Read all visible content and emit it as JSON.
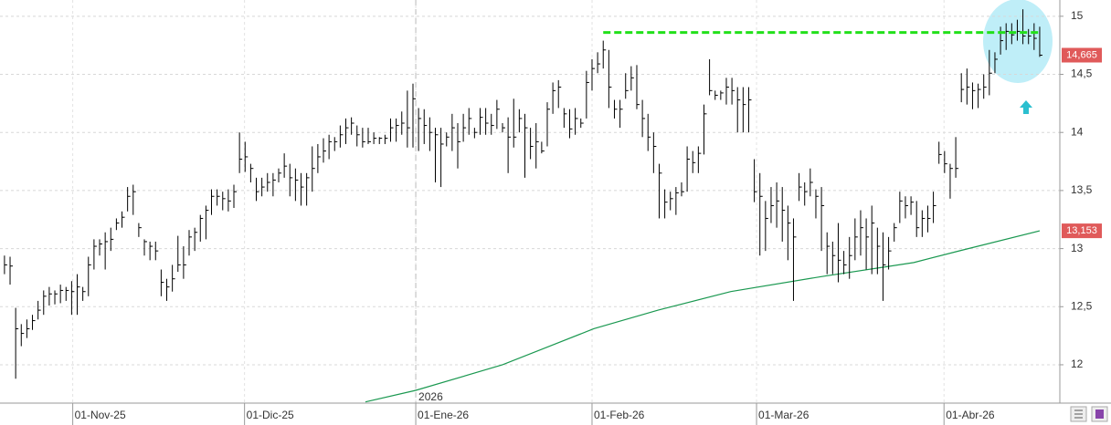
{
  "chart_data": {
    "type": "ohlc",
    "color": "#000000",
    "x": [
      0,
      1,
      2,
      3,
      4,
      5,
      6,
      7,
      8,
      9,
      10,
      11,
      12,
      13,
      14,
      15,
      16,
      17,
      18,
      19,
      20,
      21,
      22,
      23,
      24,
      25,
      26,
      27,
      28,
      29,
      30,
      31,
      32,
      33,
      34,
      35,
      36,
      37,
      38,
      39,
      40,
      41,
      42,
      43,
      44,
      45,
      46,
      47,
      48,
      49,
      50,
      51,
      52,
      53,
      54,
      55,
      56,
      57,
      58,
      59,
      60,
      61,
      62,
      63,
      64,
      65,
      66,
      67,
      68,
      69,
      70,
      71,
      72,
      73,
      74,
      75,
      76,
      77,
      78,
      79,
      80,
      81,
      82,
      83,
      84,
      85,
      86,
      87,
      88,
      89,
      90,
      91,
      92,
      93,
      94,
      95,
      96,
      97,
      98,
      99,
      100,
      101,
      102,
      103,
      104,
      105,
      106,
      107,
      108,
      109,
      110,
      111,
      112,
      113,
      114,
      115,
      116,
      117,
      118,
      119,
      120,
      121,
      122,
      123,
      124,
      125,
      126,
      127,
      128,
      129,
      130,
      131,
      132,
      133,
      134,
      135,
      136,
      137,
      138,
      139,
      140,
      141,
      142,
      143,
      144,
      145,
      146,
      147,
      148,
      149,
      150,
      151,
      152,
      153,
      154,
      155,
      156,
      157,
      158,
      159,
      160,
      161,
      162,
      163,
      164,
      165,
      166,
      167,
      168,
      169,
      170,
      171,
      172,
      173,
      174,
      175,
      176,
      177,
      178,
      179,
      180,
      181,
      182,
      183,
      184,
      185
    ],
    "high": [
      12.94,
      12.93,
      12.49,
      12.35,
      12.39,
      12.43,
      12.55,
      12.64,
      12.67,
      12.64,
      12.69,
      12.67,
      12.72,
      12.78,
      12.67,
      12.93,
      13.08,
      13.08,
      13.14,
      13.18,
      13.26,
      13.32,
      13.53,
      13.55,
      13.22,
      13.08,
      13.06,
      13.06,
      12.82,
      12.74,
      12.86,
      13.11,
      13.02,
      13.16,
      13.18,
      13.29,
      13.37,
      13.51,
      13.51,
      13.49,
      13.51,
      13.55,
      14.0,
      13.92,
      13.73,
      13.61,
      13.61,
      13.65,
      13.65,
      13.69,
      13.82,
      13.73,
      13.69,
      13.65,
      13.65,
      13.88,
      13.9,
      13.95,
      13.98,
      13.96,
      14.06,
      14.12,
      14.13,
      14.06,
      14.04,
      14.04,
      14.0,
      13.96,
      13.98,
      14.12,
      14.12,
      14.18,
      14.36,
      14.42,
      14.21,
      14.2,
      14.13,
      14.04,
      14.04,
      14.0,
      14.16,
      14.08,
      14.16,
      14.21,
      14.04,
      14.21,
      14.21,
      14.16,
      14.28,
      14.08,
      14.13,
      14.29,
      14.2,
      14.16,
      14.04,
      14.08,
      13.92,
      14.26,
      14.43,
      14.45,
      14.21,
      14.2,
      14.21,
      14.12,
      14.53,
      14.63,
      14.69,
      14.79,
      14.71,
      14.28,
      14.28,
      14.51,
      14.57,
      14.58,
      14.28,
      14.16,
      14.0,
      13.73,
      13.51,
      13.49,
      13.53,
      13.57,
      13.88,
      13.84,
      13.88,
      14.24,
      14.63,
      14.36,
      14.36,
      14.47,
      14.47,
      14.39,
      14.39,
      14.39,
      13.77,
      13.65,
      13.41,
      13.53,
      13.57,
      13.53,
      13.37,
      13.26,
      13.65,
      13.57,
      13.69,
      13.51,
      13.53,
      13.14,
      13.06,
      13.22,
      12.98,
      13.1,
      13.26,
      13.33,
      13.26,
      13.37,
      13.18,
      13.14,
      13.1,
      13.22,
      13.49,
      13.45,
      13.45,
      13.41,
      13.33,
      13.37,
      13.49,
      13.92,
      13.84,
      13.73,
      13.96,
      14.51,
      14.55,
      14.43,
      14.42,
      14.5,
      14.71,
      14.69,
      14.91,
      14.94,
      14.94,
      14.97,
      15.06,
      14.89,
      14.94,
      14.91
    ],
    "low": [
      12.78,
      12.69,
      11.88,
      12.16,
      12.23,
      12.3,
      12.39,
      12.43,
      12.51,
      12.52,
      12.53,
      12.55,
      12.43,
      12.43,
      12.55,
      12.59,
      12.82,
      12.94,
      12.82,
      12.98,
      13.16,
      13.18,
      13.32,
      13.29,
      13.1,
      12.94,
      12.9,
      12.9,
      12.59,
      12.55,
      12.63,
      12.8,
      12.74,
      12.94,
      12.98,
      13.06,
      13.08,
      13.29,
      13.37,
      13.33,
      13.32,
      13.35,
      13.65,
      13.66,
      13.57,
      13.41,
      13.45,
      13.49,
      13.45,
      13.57,
      13.61,
      13.45,
      13.41,
      13.37,
      13.37,
      13.49,
      13.65,
      13.74,
      13.77,
      13.84,
      13.87,
      13.9,
      13.98,
      13.88,
      13.87,
      13.9,
      13.9,
      13.9,
      13.9,
      13.92,
      13.92,
      13.98,
      13.87,
      13.87,
      13.84,
      13.9,
      13.84,
      13.57,
      13.53,
      13.88,
      13.84,
      13.69,
      13.92,
      13.98,
      13.95,
      13.98,
      13.98,
      13.98,
      14.03,
      14.0,
      13.65,
      13.87,
      14.0,
      13.61,
      13.77,
      13.69,
      13.82,
      13.88,
      14.16,
      14.21,
      14.04,
      13.95,
      13.98,
      14.04,
      14.12,
      14.36,
      14.51,
      14.55,
      14.21,
      14.12,
      14.04,
      14.29,
      14.36,
      14.2,
      13.96,
      13.84,
      13.65,
      13.26,
      13.26,
      13.33,
      13.29,
      13.45,
      13.49,
      13.65,
      13.65,
      13.81,
      14.32,
      14.28,
      14.28,
      14.24,
      14.24,
      14.0,
      14.0,
      14.0,
      13.4,
      12.94,
      12.98,
      13.22,
      13.18,
      13.06,
      12.9,
      12.55,
      13.41,
      13.37,
      13.45,
      13.26,
      12.98,
      12.78,
      12.78,
      12.71,
      12.78,
      12.74,
      12.9,
      12.94,
      12.82,
      12.78,
      12.78,
      12.55,
      12.82,
      13.06,
      13.22,
      13.26,
      13.29,
      13.1,
      13.1,
      13.14,
      13.22,
      13.73,
      13.65,
      13.43,
      13.61,
      14.26,
      14.24,
      14.2,
      14.21,
      14.29,
      14.32,
      14.51,
      14.67,
      14.71,
      14.76,
      14.79,
      14.76,
      14.76,
      14.71,
      14.65
    ],
    "close": [
      12.86,
      12.85,
      12.31,
      12.27,
      12.31,
      12.38,
      12.47,
      12.59,
      12.61,
      12.61,
      12.64,
      12.64,
      12.63,
      12.67,
      12.63,
      12.86,
      13.02,
      13.04,
      13.06,
      13.08,
      13.22,
      13.27,
      13.45,
      13.49,
      13.18,
      13.06,
      13.02,
      12.98,
      12.71,
      12.67,
      12.74,
      12.86,
      12.86,
      13.1,
      13.14,
      13.26,
      13.33,
      13.45,
      13.45,
      13.43,
      13.41,
      13.49,
      13.77,
      13.79,
      13.69,
      13.49,
      13.53,
      13.57,
      13.59,
      13.65,
      13.71,
      13.61,
      13.59,
      13.53,
      13.61,
      13.69,
      13.79,
      13.84,
      13.92,
      13.92,
      13.98,
      14.04,
      14.08,
      13.98,
      13.92,
      13.92,
      13.95,
      13.95,
      13.95,
      14.04,
      14.06,
      14.08,
      14.04,
      14.29,
      14.12,
      14.06,
      14.0,
      13.98,
      13.9,
      13.96,
      14.04,
      13.92,
      14.04,
      14.12,
      14.0,
      14.13,
      14.08,
      14.06,
      14.2,
      14.04,
      13.96,
      13.96,
      14.12,
      14.04,
      13.88,
      13.92,
      13.84,
      14.2,
      14.36,
      14.39,
      14.16,
      14.03,
      14.12,
      14.08,
      14.43,
      14.55,
      14.59,
      14.71,
      14.39,
      14.2,
      14.2,
      14.36,
      14.47,
      14.24,
      14.12,
      13.96,
      13.88,
      13.65,
      13.4,
      13.43,
      13.48,
      13.49,
      13.77,
      13.74,
      13.82,
      14.16,
      14.36,
      14.32,
      14.34,
      14.39,
      14.36,
      14.28,
      14.24,
      14.28,
      13.49,
      13.45,
      13.26,
      13.37,
      13.41,
      13.33,
      13.22,
      13.1,
      13.53,
      13.49,
      13.57,
      13.45,
      13.37,
      13.02,
      12.94,
      12.9,
      12.86,
      12.94,
      13.1,
      13.18,
      13.1,
      13.22,
      13.02,
      12.86,
      12.98,
      13.18,
      13.41,
      13.37,
      13.4,
      13.18,
      13.26,
      13.26,
      13.37,
      13.81,
      13.73,
      13.69,
      13.69,
      14.37,
      14.39,
      14.36,
      14.37,
      14.39,
      14.51,
      14.63,
      14.79,
      14.87,
      14.84,
      14.87,
      14.83,
      14.83,
      14.81,
      14.665
    ],
    "moving_average": {
      "color": "#1a9850",
      "x": [
        64.5,
        73.5,
        89,
        105.3,
        116.8,
        129.8,
        146.1,
        162.5,
        170.6,
        185
      ],
      "values": [
        11.68,
        11.78,
        12.0,
        12.31,
        12.47,
        12.63,
        12.76,
        12.88,
        12.98,
        13.153
      ]
    },
    "level_line": {
      "color": "#22e01a",
      "x": [
        107,
        185
      ],
      "value": 14.86
    },
    "price_labels": [
      {
        "value": 14.665,
        "label": "14,665"
      },
      {
        "value": 13.153,
        "label": "13,153"
      }
    ],
    "price_label_color": "#e05a5a",
    "year_marker": {
      "value": 73.5,
      "label": "2026"
    },
    "xlim": [
      -0.8,
      188.6
    ],
    "xticks": [
      {
        "value": 12.2,
        "label": "01-Nov-25"
      },
      {
        "value": 42.9,
        "label": "01-Dic-25"
      },
      {
        "value": 73.5,
        "label": "01-Ene-26"
      },
      {
        "value": 105,
        "label": "01-Feb-26"
      },
      {
        "value": 134.4,
        "label": "01-Mar-26"
      },
      {
        "value": 167.9,
        "label": "01-Abr-26"
      }
    ],
    "ylim": [
      11.67,
      15.14
    ],
    "yticks": [
      {
        "value": 12,
        "label": "12"
      },
      {
        "value": 12.5,
        "label": "12,5"
      },
      {
        "value": 13,
        "label": "13"
      },
      {
        "value": 13.5,
        "label": "13,5"
      },
      {
        "value": 14,
        "label": "14"
      },
      {
        "value": 14.5,
        "label": "14,5"
      },
      {
        "value": 15,
        "label": "15"
      }
    ],
    "grid": true
  }
}
